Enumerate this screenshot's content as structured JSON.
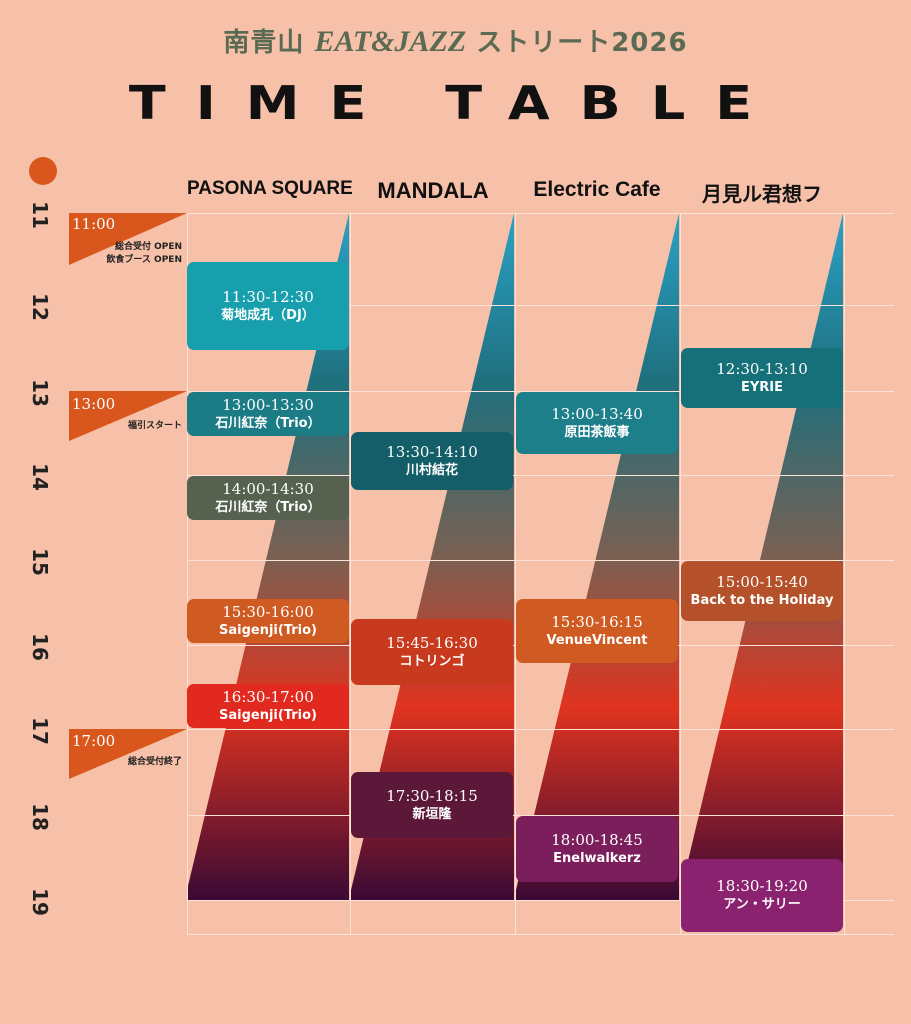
{
  "header": {
    "prefix": "南青山",
    "brand": "EAT&JAZZ",
    "suffix": "ストリート2026",
    "title": "TIME TABLE"
  },
  "venues": [
    "PASONA SQUARE",
    "MANDALA",
    "Electric Cafe",
    "月見ル君想フ"
  ],
  "hours": [
    "11",
    "12",
    "13",
    "14",
    "15",
    "16",
    "17",
    "18",
    "19"
  ],
  "notes": [
    {
      "time": "11:00",
      "text": [
        "総合受付 OPEN",
        "飲食ブース OPEN"
      ]
    },
    {
      "time": "13:00",
      "text": [
        "福引スタート"
      ]
    },
    {
      "time": "17:00",
      "text": [
        "総合受付終了"
      ]
    }
  ],
  "events": {
    "pasona": [
      {
        "time": "11:30-12:30",
        "artist": "菊地成孔（DJ）",
        "color": "#189fae"
      },
      {
        "time": "13:00-13:30",
        "artist": "石川紅奈（Trio）",
        "color": "#1c7c85"
      },
      {
        "time": "14:00-14:30",
        "artist": "石川紅奈（Trio）",
        "color": "#56614f"
      },
      {
        "time": "15:30-16:00",
        "artist": "Saigenji(Trio)",
        "color": "#cf5a22"
      },
      {
        "time": "16:30-17:00",
        "artist": "Saigenji(Trio)",
        "color": "#e1291f"
      }
    ],
    "mandala": [
      {
        "time": "13:30-14:10",
        "artist": "川村結花",
        "color": "#135e69"
      },
      {
        "time": "15:45-16:30",
        "artist": "コトリンゴ",
        "color": "#c83a1d"
      },
      {
        "time": "17:30-18:15",
        "artist": "新垣隆",
        "color": "#5c1838"
      }
    ],
    "electric": [
      {
        "time": "13:00-13:40",
        "artist": "原田茶飯事",
        "color": "#1d7f8a"
      },
      {
        "time": "15:30-16:15",
        "artist": "VenueVincent",
        "color": "#cf5a22"
      },
      {
        "time": "18:00-18:45",
        "artist": "Enelwalkerz",
        "color": "#7b1e5c"
      }
    ],
    "tsukimiru": [
      {
        "time": "12:30-13:10",
        "artist": "EYRIE",
        "color": "#16707a"
      },
      {
        "time": "15:00-15:40",
        "artist": "Back to the Holiday",
        "color": "#b4502a"
      },
      {
        "time": "18:30-19:20",
        "artist": "アン・サリー",
        "color": "#8b2270"
      }
    ]
  },
  "colors": {
    "background": "#f6c0a9",
    "accent_orange": "#d9571d",
    "header_green": "#5b6a52",
    "gradient": [
      "#2aa2c6",
      "#1f6f7d",
      "#7a6052",
      "#e0331f",
      "#3a0a35"
    ]
  }
}
